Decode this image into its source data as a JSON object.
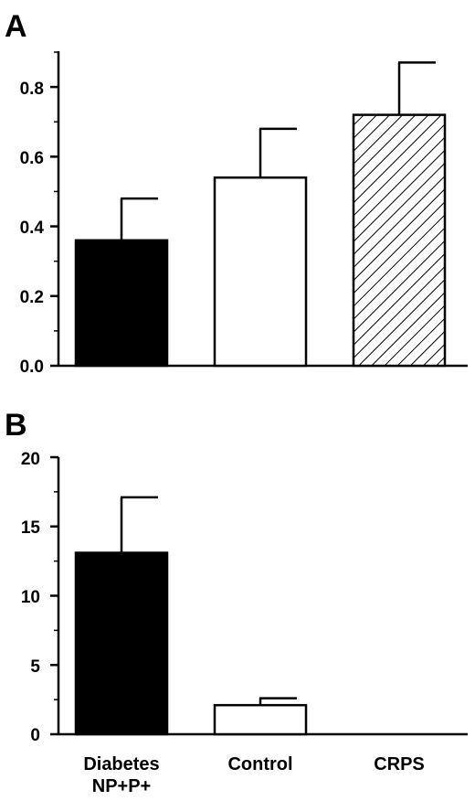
{
  "chart_data": [
    {
      "type": "bar",
      "panel_label": "A",
      "categories": [
        "Diabetes NP+P+",
        "Control",
        "CRPS"
      ],
      "values": [
        0.36,
        0.54,
        0.72
      ],
      "errors": [
        0.12,
        0.14,
        0.15
      ],
      "fills": [
        "solid-black",
        "white",
        "hatched"
      ],
      "ylim": [
        0,
        0.9
      ],
      "yticks": [
        0.0,
        0.2,
        0.4,
        0.6,
        0.8
      ],
      "ytick_labels": [
        "0.0",
        "0.2",
        "0.4",
        "0.6",
        "0.8"
      ],
      "title": "",
      "xlabel": "",
      "ylabel": "",
      "grid": false
    },
    {
      "type": "bar",
      "panel_label": "B",
      "categories": [
        "Diabetes NP+P+",
        "Control",
        "CRPS"
      ],
      "category_labels": [
        [
          "Diabetes",
          "NP+P+"
        ],
        [
          "Control"
        ],
        [
          "CRPS"
        ]
      ],
      "values": [
        13.1,
        2.1,
        0
      ],
      "errors": [
        4.0,
        0.5,
        0
      ],
      "fills": [
        "solid-black",
        "white",
        "white"
      ],
      "ylim": [
        0,
        20
      ],
      "yticks": [
        0,
        5,
        10,
        15,
        20
      ],
      "ytick_labels": [
        "0",
        "5",
        "10",
        "15",
        "20"
      ],
      "title": "",
      "xlabel": "",
      "ylabel": "",
      "grid": false
    }
  ],
  "colors": {
    "foreground": "#000000",
    "background": "#ffffff"
  }
}
